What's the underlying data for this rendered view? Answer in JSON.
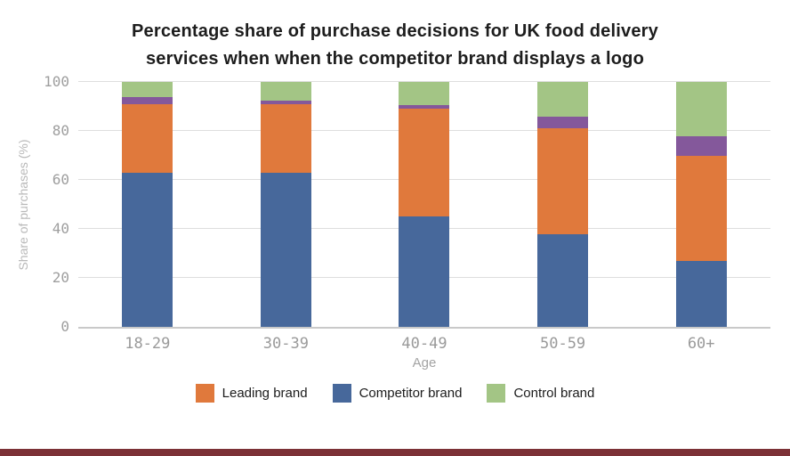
{
  "title": {
    "line1": "Percentage share of purchase decisions for UK food delivery",
    "line2": "services when when the competitor brand displays a logo"
  },
  "chart_data": {
    "type": "bar",
    "stacked": true,
    "title": "Percentage share of purchase decisions for UK food delivery services when when the competitor brand displays a logo",
    "xlabel": "Age",
    "ylabel": "Share of purchases (%)",
    "ylim": [
      0,
      100
    ],
    "yticks": [
      0,
      20,
      40,
      60,
      80,
      100
    ],
    "grid": true,
    "legend_position": "bottom",
    "categories": [
      "18-29",
      "30-39",
      "40-49",
      "50-59",
      "60+"
    ],
    "series": [
      {
        "name": "Competitor brand",
        "color": "#47689B",
        "values": [
          63,
          63,
          45,
          38,
          27
        ]
      },
      {
        "name": "Leading brand",
        "color": "#E0793C",
        "values": [
          28,
          28,
          44,
          43,
          43
        ]
      },
      {
        "name": "(unlabeled purple segment)",
        "color": "#84589B",
        "values": [
          3,
          1.5,
          1.5,
          5,
          8
        ]
      },
      {
        "name": "Control brand",
        "color": "#A3C585",
        "values": [
          6,
          7.5,
          9.5,
          14,
          22
        ]
      }
    ],
    "legend": [
      {
        "label": "Leading brand",
        "color": "#E0793C"
      },
      {
        "label": "Competitor brand",
        "color": "#47689B"
      },
      {
        "label": "Control brand",
        "color": "#A3C585"
      }
    ]
  },
  "colors": {
    "title_text": "#1d1d1d",
    "tick_text": "#9e9e9e",
    "gridline": "#dedede",
    "axis_line": "#c9c9c9",
    "bottom_strip": "#7c3136"
  }
}
